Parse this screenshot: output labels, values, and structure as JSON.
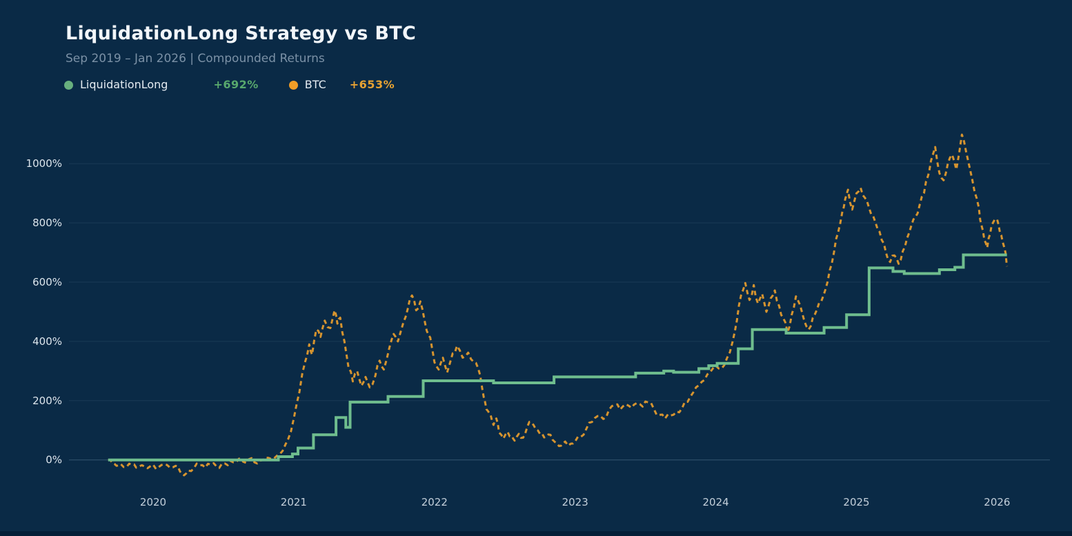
{
  "header": {
    "title": "LiquidationLong Strategy vs BTC",
    "subtitle": "Sep 2019 – Jan 2026 | Compounded Returns"
  },
  "legend": {
    "items": [
      {
        "label": "LiquidationLong",
        "value": "+692%",
        "swatch_color": "#68b07e",
        "value_color": "#58a86d"
      },
      {
        "label": "BTC",
        "value": "+653%",
        "swatch_color": "#f19d27",
        "value_color": "#e6a233"
      }
    ]
  },
  "chart_data": {
    "type": "line",
    "title": "LiquidationLong Strategy vs BTC",
    "subtitle": "Sep 2019 – Jan 2026 | Compounded Returns",
    "grid": true,
    "legend_position": "top-left",
    "background_color": "#0a2a46",
    "x_axis": {
      "label": "",
      "range": [
        2019.6,
        2026.35
      ],
      "ticks": [
        {
          "label": "2020",
          "value": 2020
        },
        {
          "label": "2021",
          "value": 2021
        },
        {
          "label": "2022",
          "value": 2022
        },
        {
          "label": "2023",
          "value": 2023
        },
        {
          "label": "2024",
          "value": 2024
        },
        {
          "label": "2025",
          "value": 2025
        },
        {
          "label": "2026",
          "value": 2026
        }
      ]
    },
    "y_axis": {
      "label": "",
      "unit": "%",
      "range": [
        -110,
        1150
      ],
      "ticks": [
        {
          "label": "0%",
          "value": 0
        },
        {
          "label": "200%",
          "value": 200
        },
        {
          "label": "400%",
          "value": 400
        },
        {
          "label": "600%",
          "value": 600
        },
        {
          "label": "800%",
          "value": 800
        },
        {
          "label": "1000%",
          "value": 1000
        }
      ]
    },
    "series": [
      {
        "name": "LiquidationLong",
        "style": "step-solid",
        "color": "#6fbd8e",
        "final_return_pct": 692,
        "points": [
          [
            2019.68,
            0
          ],
          [
            2020.89,
            11
          ],
          [
            2020.99,
            20
          ],
          [
            2021.03,
            40
          ],
          [
            2021.14,
            85
          ],
          [
            2021.3,
            143
          ],
          [
            2021.37,
            110
          ],
          [
            2021.4,
            195
          ],
          [
            2021.67,
            214
          ],
          [
            2021.92,
            267
          ],
          [
            2022.42,
            260
          ],
          [
            2022.85,
            280
          ],
          [
            2023.43,
            293
          ],
          [
            2023.63,
            300
          ],
          [
            2023.7,
            296
          ],
          [
            2023.88,
            308
          ],
          [
            2023.95,
            318
          ],
          [
            2024.01,
            326
          ],
          [
            2024.16,
            375
          ],
          [
            2024.26,
            440
          ],
          [
            2024.5,
            428
          ],
          [
            2024.77,
            447
          ],
          [
            2024.93,
            490
          ],
          [
            2025.09,
            648
          ],
          [
            2025.26,
            636
          ],
          [
            2025.34,
            629
          ],
          [
            2025.59,
            642
          ],
          [
            2025.7,
            650
          ],
          [
            2025.76,
            692
          ],
          [
            2026.07,
            692
          ]
        ]
      },
      {
        "name": "BTC",
        "style": "dashed",
        "color": "#d6942f",
        "final_return_pct": 653,
        "points": [
          [
            2019.68,
            0
          ],
          [
            2019.71,
            -10
          ],
          [
            2019.74,
            -20
          ],
          [
            2019.77,
            -14
          ],
          [
            2019.81,
            -24
          ],
          [
            2019.85,
            -16
          ],
          [
            2019.88,
            -26
          ],
          [
            2019.92,
            -18
          ],
          [
            2019.96,
            -28
          ],
          [
            2020.0,
            -16
          ],
          [
            2020.04,
            -24
          ],
          [
            2020.08,
            -14
          ],
          [
            2020.12,
            -26
          ],
          [
            2020.16,
            -20
          ],
          [
            2020.19,
            -38
          ],
          [
            2020.22,
            -52
          ],
          [
            2020.25,
            -36
          ],
          [
            2020.29,
            -28
          ],
          [
            2020.33,
            -18
          ],
          [
            2020.37,
            -26
          ],
          [
            2020.41,
            -16
          ],
          [
            2020.45,
            -22
          ],
          [
            2020.49,
            -12
          ],
          [
            2020.53,
            -18
          ],
          [
            2020.57,
            -8
          ],
          [
            2020.61,
            4
          ],
          [
            2020.64,
            -6
          ],
          [
            2020.68,
            2
          ],
          [
            2020.72,
            -8
          ],
          [
            2020.76,
            -2
          ],
          [
            2020.8,
            8
          ],
          [
            2020.84,
            3
          ],
          [
            2020.88,
            14
          ],
          [
            2020.92,
            30
          ],
          [
            2020.96,
            70
          ],
          [
            2021.0,
            140
          ],
          [
            2021.04,
            230
          ],
          [
            2021.08,
            330
          ],
          [
            2021.11,
            390
          ],
          [
            2021.13,
            355
          ],
          [
            2021.16,
            440
          ],
          [
            2021.19,
            415
          ],
          [
            2021.22,
            470
          ],
          [
            2021.26,
            445
          ],
          [
            2021.29,
            505
          ],
          [
            2021.31,
            460
          ],
          [
            2021.33,
            480
          ],
          [
            2021.36,
            400
          ],
          [
            2021.39,
            310
          ],
          [
            2021.42,
            265
          ],
          [
            2021.45,
            300
          ],
          [
            2021.48,
            250
          ],
          [
            2021.51,
            280
          ],
          [
            2021.54,
            245
          ],
          [
            2021.58,
            285
          ],
          [
            2021.61,
            335
          ],
          [
            2021.64,
            305
          ],
          [
            2021.68,
            380
          ],
          [
            2021.71,
            425
          ],
          [
            2021.74,
            400
          ],
          [
            2021.78,
            465
          ],
          [
            2021.81,
            510
          ],
          [
            2021.84,
            555
          ],
          [
            2021.87,
            505
          ],
          [
            2021.9,
            535
          ],
          [
            2021.93,
            470
          ],
          [
            2021.96,
            420
          ],
          [
            2021.98,
            385
          ],
          [
            2022.0,
            330
          ],
          [
            2022.03,
            305
          ],
          [
            2022.06,
            345
          ],
          [
            2022.09,
            295
          ],
          [
            2022.13,
            360
          ],
          [
            2022.16,
            385
          ],
          [
            2022.2,
            345
          ],
          [
            2022.24,
            362
          ],
          [
            2022.28,
            330
          ],
          [
            2022.31,
            310
          ],
          [
            2022.34,
            240
          ],
          [
            2022.36,
            195
          ],
          [
            2022.38,
            165
          ],
          [
            2022.4,
            150
          ],
          [
            2022.42,
            118
          ],
          [
            2022.44,
            140
          ],
          [
            2022.46,
            92
          ],
          [
            2022.49,
            72
          ],
          [
            2022.52,
            95
          ],
          [
            2022.55,
            80
          ],
          [
            2022.57,
            65
          ],
          [
            2022.6,
            88
          ],
          [
            2022.63,
            75
          ],
          [
            2022.66,
            112
          ],
          [
            2022.69,
            126
          ],
          [
            2022.72,
            104
          ],
          [
            2022.75,
            88
          ],
          [
            2022.78,
            76
          ],
          [
            2022.81,
            86
          ],
          [
            2022.84,
            68
          ],
          [
            2022.87,
            56
          ],
          [
            2022.9,
            48
          ],
          [
            2022.93,
            62
          ],
          [
            2022.97,
            55
          ],
          [
            2023.0,
            62
          ],
          [
            2023.04,
            78
          ],
          [
            2023.08,
            105
          ],
          [
            2023.12,
            128
          ],
          [
            2023.16,
            148
          ],
          [
            2023.2,
            138
          ],
          [
            2023.24,
            168
          ],
          [
            2023.28,
            186
          ],
          [
            2023.32,
            170
          ],
          [
            2023.36,
            188
          ],
          [
            2023.4,
            176
          ],
          [
            2023.44,
            192
          ],
          [
            2023.48,
            180
          ],
          [
            2023.52,
            194
          ],
          [
            2023.56,
            172
          ],
          [
            2023.6,
            152
          ],
          [
            2023.64,
            140
          ],
          [
            2023.68,
            150
          ],
          [
            2023.72,
            163
          ],
          [
            2023.76,
            174
          ],
          [
            2023.8,
            196
          ],
          [
            2023.84,
            228
          ],
          [
            2023.88,
            252
          ],
          [
            2023.92,
            270
          ],
          [
            2023.96,
            296
          ],
          [
            2024.0,
            318
          ],
          [
            2024.04,
            308
          ],
          [
            2024.08,
            344
          ],
          [
            2024.12,
            400
          ],
          [
            2024.15,
            470
          ],
          [
            2024.18,
            556
          ],
          [
            2024.21,
            597
          ],
          [
            2024.24,
            540
          ],
          [
            2024.27,
            590
          ],
          [
            2024.3,
            528
          ],
          [
            2024.33,
            560
          ],
          [
            2024.36,
            500
          ],
          [
            2024.39,
            545
          ],
          [
            2024.42,
            572
          ],
          [
            2024.45,
            520
          ],
          [
            2024.48,
            478
          ],
          [
            2024.51,
            430
          ],
          [
            2024.54,
            490
          ],
          [
            2024.57,
            552
          ],
          [
            2024.6,
            522
          ],
          [
            2024.63,
            468
          ],
          [
            2024.66,
            440
          ],
          [
            2024.69,
            480
          ],
          [
            2024.72,
            508
          ],
          [
            2024.75,
            535
          ],
          [
            2024.78,
            575
          ],
          [
            2024.81,
            640
          ],
          [
            2024.84,
            700
          ],
          [
            2024.87,
            768
          ],
          [
            2024.9,
            838
          ],
          [
            2024.92,
            880
          ],
          [
            2024.94,
            912
          ],
          [
            2024.97,
            845
          ],
          [
            2025.0,
            900
          ],
          [
            2025.03,
            918
          ],
          [
            2025.06,
            885
          ],
          [
            2025.09,
            850
          ],
          [
            2025.12,
            822
          ],
          [
            2025.15,
            780
          ],
          [
            2025.18,
            742
          ],
          [
            2025.21,
            700
          ],
          [
            2025.24,
            668
          ],
          [
            2025.27,
            690
          ],
          [
            2025.3,
            662
          ],
          [
            2025.33,
            705
          ],
          [
            2025.36,
            748
          ],
          [
            2025.39,
            790
          ],
          [
            2025.42,
            820
          ],
          [
            2025.45,
            862
          ],
          [
            2025.48,
            900
          ],
          [
            2025.51,
            960
          ],
          [
            2025.53,
            1010
          ],
          [
            2025.56,
            1056
          ],
          [
            2025.59,
            968
          ],
          [
            2025.62,
            944
          ],
          [
            2025.65,
            1000
          ],
          [
            2025.68,
            1030
          ],
          [
            2025.71,
            980
          ],
          [
            2025.75,
            1098
          ],
          [
            2025.78,
            1040
          ],
          [
            2025.81,
            975
          ],
          [
            2025.84,
            905
          ],
          [
            2025.87,
            852
          ],
          [
            2025.89,
            790
          ],
          [
            2025.91,
            742
          ],
          [
            2025.93,
            716
          ],
          [
            2025.95,
            762
          ],
          [
            2025.97,
            800
          ],
          [
            2026.0,
            812
          ],
          [
            2026.02,
            768
          ],
          [
            2026.04,
            735
          ],
          [
            2026.06,
            700
          ],
          [
            2026.07,
            653
          ]
        ]
      }
    ]
  }
}
